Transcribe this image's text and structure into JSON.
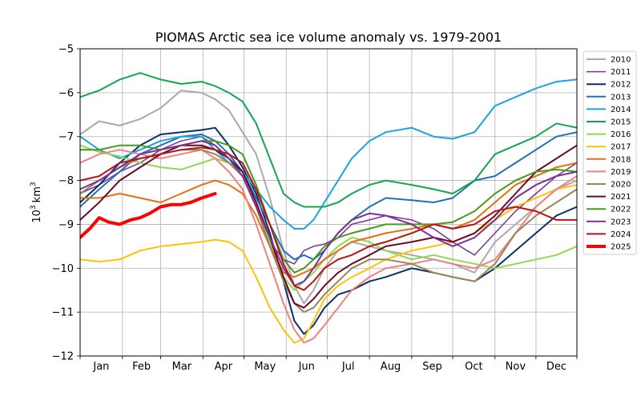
{
  "chart_data": {
    "type": "line",
    "title": "PIOMAS Arctic sea ice volume anomaly vs. 1979-2001",
    "ylabel_base": "10",
    "ylabel_exp": "3",
    "ylabel_unit": "km",
    "ylabel_unit_exp": "3",
    "xlabel": "",
    "ylim": [
      -12,
      -5
    ],
    "xlim": [
      1,
      365
    ],
    "yticks": [
      -12,
      -11,
      -10,
      -9,
      -8,
      -7,
      -6,
      -5
    ],
    "ytick_labels": [
      "−12",
      "−11",
      "−10",
      "−9",
      "−8",
      "−7",
      "−6",
      "−5"
    ],
    "month_boundaries": [
      1,
      32,
      60,
      91,
      121,
      152,
      182,
      213,
      244,
      274,
      305,
      335,
      365
    ],
    "months": [
      "Jan",
      "Feb",
      "Mar",
      "Apr",
      "May",
      "Jun",
      "Jul",
      "Aug",
      "Sep",
      "Oct",
      "Nov",
      "Dec"
    ],
    "grid": true,
    "legend_position": "right",
    "series": [
      {
        "name": "2010",
        "color": "#aaaaaa",
        "width": 2,
        "x": [
          1,
          15,
          30,
          45,
          60,
          75,
          90,
          100,
          110,
          120,
          130,
          140,
          150,
          158,
          165,
          172,
          180,
          190,
          200,
          213,
          225,
          244,
          260,
          274,
          290,
          305,
          320,
          335,
          350,
          365
        ],
        "y": [
          -6.95,
          -6.65,
          -6.75,
          -6.6,
          -6.35,
          -5.95,
          -6.0,
          -6.15,
          -6.4,
          -6.9,
          -7.4,
          -8.4,
          -9.6,
          -10.4,
          -10.8,
          -10.5,
          -10.0,
          -9.6,
          -9.4,
          -9.5,
          -9.6,
          -9.7,
          -9.8,
          -9.9,
          -10.1,
          -9.4,
          -9.0,
          -8.6,
          -8.2,
          -8.0
        ]
      },
      {
        "name": "2011",
        "color": "#7b3294",
        "width": 1.5,
        "x": [
          1,
          15,
          30,
          45,
          60,
          75,
          90,
          100,
          110,
          120,
          130,
          140,
          150,
          158,
          165,
          172,
          180,
          190,
          200,
          213,
          225,
          244,
          260,
          274,
          290,
          305,
          320,
          335,
          350,
          365
        ],
        "y": [
          -8.3,
          -8.1,
          -7.8,
          -7.6,
          -7.3,
          -7.1,
          -7.0,
          -7.2,
          -7.5,
          -7.9,
          -8.6,
          -9.4,
          -9.8,
          -9.9,
          -9.6,
          -9.5,
          -9.45,
          -9.3,
          -9.0,
          -8.9,
          -8.8,
          -8.9,
          -9.1,
          -9.4,
          -9.7,
          -9.2,
          -8.7,
          -8.3,
          -7.9,
          -7.6
        ]
      },
      {
        "name": "2012",
        "color": "#08306b",
        "width": 2,
        "x": [
          1,
          15,
          30,
          45,
          60,
          75,
          90,
          100,
          110,
          120,
          130,
          140,
          150,
          158,
          165,
          172,
          180,
          190,
          200,
          213,
          225,
          244,
          260,
          274,
          290,
          305,
          320,
          335,
          350,
          365
        ],
        "y": [
          -8.5,
          -8.1,
          -7.6,
          -7.2,
          -6.95,
          -6.9,
          -6.85,
          -6.8,
          -7.2,
          -7.7,
          -8.3,
          -9.2,
          -10.3,
          -11.2,
          -11.5,
          -11.3,
          -10.9,
          -10.6,
          -10.5,
          -10.3,
          -10.2,
          -10.0,
          -10.1,
          -10.2,
          -10.3,
          -10.0,
          -9.6,
          -9.2,
          -8.8,
          -8.6
        ]
      },
      {
        "name": "2013",
        "color": "#2171b5",
        "width": 2,
        "x": [
          1,
          15,
          30,
          45,
          60,
          75,
          90,
          100,
          110,
          120,
          130,
          140,
          150,
          158,
          165,
          172,
          180,
          190,
          200,
          213,
          225,
          244,
          260,
          274,
          290,
          305,
          320,
          335,
          350,
          365
        ],
        "y": [
          -8.6,
          -8.2,
          -7.8,
          -7.4,
          -7.2,
          -7.0,
          -6.95,
          -7.1,
          -7.4,
          -7.8,
          -8.4,
          -9.0,
          -9.6,
          -9.8,
          -9.7,
          -9.8,
          -9.6,
          -9.2,
          -8.9,
          -8.6,
          -8.4,
          -8.45,
          -8.5,
          -8.4,
          -8.0,
          -7.9,
          -7.6,
          -7.3,
          -7.0,
          -6.9
        ]
      },
      {
        "name": "2014",
        "color": "#1aa3e0",
        "width": 2,
        "x": [
          1,
          15,
          30,
          45,
          60,
          75,
          90,
          100,
          110,
          120,
          130,
          140,
          150,
          158,
          165,
          172,
          180,
          190,
          200,
          213,
          225,
          244,
          260,
          274,
          290,
          305,
          320,
          335,
          350,
          365
        ],
        "y": [
          -7.0,
          -7.3,
          -7.5,
          -7.3,
          -7.1,
          -7.0,
          -7.0,
          -7.3,
          -7.6,
          -7.8,
          -8.2,
          -8.6,
          -8.9,
          -9.1,
          -9.1,
          -8.9,
          -8.5,
          -8.0,
          -7.5,
          -7.1,
          -6.9,
          -6.8,
          -7.0,
          -7.05,
          -6.9,
          -6.3,
          -6.1,
          -5.9,
          -5.75,
          -5.7
        ]
      },
      {
        "name": "2015",
        "color": "#12a650",
        "width": 2,
        "x": [
          1,
          15,
          30,
          45,
          60,
          75,
          90,
          100,
          110,
          120,
          130,
          140,
          150,
          158,
          165,
          172,
          180,
          190,
          200,
          213,
          225,
          244,
          260,
          274,
          290,
          305,
          320,
          335,
          350,
          365
        ],
        "y": [
          -6.1,
          -5.95,
          -5.7,
          -5.55,
          -5.7,
          -5.8,
          -5.75,
          -5.85,
          -6.0,
          -6.2,
          -6.7,
          -7.5,
          -8.3,
          -8.5,
          -8.6,
          -8.6,
          -8.6,
          -8.5,
          -8.3,
          -8.1,
          -8.0,
          -8.1,
          -8.2,
          -8.3,
          -8.0,
          -7.4,
          -7.2,
          -7.0,
          -6.7,
          -6.8
        ]
      },
      {
        "name": "2016",
        "color": "#91d850",
        "width": 2,
        "x": [
          1,
          15,
          30,
          45,
          60,
          75,
          90,
          100,
          110,
          120,
          130,
          140,
          150,
          158,
          165,
          172,
          180,
          190,
          200,
          213,
          225,
          244,
          260,
          274,
          290,
          305,
          320,
          335,
          350,
          365
        ],
        "y": [
          -7.2,
          -7.35,
          -7.45,
          -7.6,
          -7.7,
          -7.75,
          -7.6,
          -7.5,
          -7.6,
          -7.9,
          -8.6,
          -9.4,
          -10.2,
          -10.5,
          -10.3,
          -10.1,
          -9.8,
          -9.5,
          -9.3,
          -9.4,
          -9.6,
          -9.8,
          -9.7,
          -9.8,
          -9.9,
          -10.0,
          -9.9,
          -9.8,
          -9.7,
          -9.5
        ]
      },
      {
        "name": "2017",
        "color": "#fbc30a",
        "width": 2,
        "x": [
          1,
          15,
          30,
          45,
          60,
          75,
          90,
          100,
          110,
          120,
          130,
          140,
          150,
          158,
          165,
          172,
          180,
          190,
          200,
          213,
          225,
          244,
          260,
          274,
          290,
          305,
          320,
          335,
          350,
          365
        ],
        "y": [
          -9.8,
          -9.85,
          -9.8,
          -9.6,
          -9.5,
          -9.45,
          -9.4,
          -9.35,
          -9.4,
          -9.6,
          -10.2,
          -10.9,
          -11.4,
          -11.7,
          -11.6,
          -11.2,
          -10.7,
          -10.4,
          -10.2,
          -10.0,
          -9.8,
          -9.6,
          -9.5,
          -9.4,
          -9.2,
          -8.9,
          -8.6,
          -8.4,
          -8.2,
          -8.1
        ]
      },
      {
        "name": "2018",
        "color": "#e6700f",
        "width": 2,
        "x": [
          1,
          15,
          30,
          45,
          60,
          75,
          90,
          100,
          110,
          120,
          130,
          140,
          150,
          158,
          165,
          172,
          180,
          190,
          200,
          213,
          225,
          244,
          260,
          274,
          290,
          305,
          320,
          335,
          350,
          365
        ],
        "y": [
          -8.4,
          -8.4,
          -8.3,
          -8.4,
          -8.5,
          -8.3,
          -8.1,
          -8.0,
          -8.1,
          -8.3,
          -8.8,
          -9.5,
          -10.1,
          -10.2,
          -10.1,
          -10.0,
          -9.8,
          -9.6,
          -9.4,
          -9.3,
          -9.2,
          -9.1,
          -9.0,
          -9.1,
          -8.9,
          -8.5,
          -8.1,
          -7.9,
          -7.7,
          -7.6
        ]
      },
      {
        "name": "2019",
        "color": "#f08080",
        "width": 2,
        "x": [
          1,
          15,
          30,
          45,
          60,
          75,
          90,
          100,
          110,
          120,
          130,
          140,
          150,
          158,
          165,
          172,
          180,
          190,
          200,
          213,
          225,
          244,
          260,
          274,
          290,
          305,
          320,
          335,
          350,
          365
        ],
        "y": [
          -7.6,
          -7.4,
          -7.3,
          -7.4,
          -7.5,
          -7.4,
          -7.3,
          -7.5,
          -7.8,
          -8.2,
          -9.0,
          -9.9,
          -10.8,
          -11.4,
          -11.7,
          -11.6,
          -11.3,
          -10.9,
          -10.5,
          -10.2,
          -10.0,
          -9.9,
          -9.8,
          -9.9,
          -10.0,
          -9.8,
          -9.2,
          -8.6,
          -8.2,
          -7.9
        ]
      },
      {
        "name": "2020",
        "color": "#9b8558",
        "width": 2,
        "x": [
          1,
          15,
          30,
          45,
          60,
          75,
          90,
          100,
          110,
          120,
          130,
          140,
          150,
          158,
          165,
          172,
          180,
          190,
          200,
          213,
          225,
          244,
          260,
          274,
          290,
          305,
          320,
          335,
          350,
          365
        ],
        "y": [
          -8.3,
          -8.0,
          -7.7,
          -7.5,
          -7.4,
          -7.3,
          -7.3,
          -7.4,
          -7.6,
          -7.9,
          -8.6,
          -9.5,
          -10.3,
          -10.8,
          -11.0,
          -10.9,
          -10.6,
          -10.3,
          -10.0,
          -9.8,
          -9.8,
          -9.9,
          -10.1,
          -10.2,
          -10.3,
          -9.9,
          -9.2,
          -8.8,
          -8.5,
          -8.2
        ]
      },
      {
        "name": "2021",
        "color": "#6a0a2a",
        "width": 2,
        "x": [
          1,
          15,
          30,
          45,
          60,
          75,
          90,
          100,
          110,
          120,
          130,
          140,
          150,
          158,
          165,
          172,
          180,
          190,
          200,
          213,
          225,
          244,
          260,
          274,
          290,
          305,
          320,
          335,
          350,
          365
        ],
        "y": [
          -8.9,
          -8.5,
          -8.0,
          -7.7,
          -7.4,
          -7.2,
          -7.2,
          -7.3,
          -7.5,
          -7.8,
          -8.5,
          -9.3,
          -10.2,
          -10.8,
          -10.9,
          -10.7,
          -10.4,
          -10.1,
          -9.9,
          -9.7,
          -9.5,
          -9.4,
          -9.3,
          -9.4,
          -9.2,
          -8.8,
          -8.3,
          -7.8,
          -7.5,
          -7.2
        ]
      },
      {
        "name": "2022",
        "color": "#4a9a1a",
        "width": 2,
        "x": [
          1,
          15,
          30,
          45,
          60,
          75,
          90,
          100,
          110,
          120,
          130,
          140,
          150,
          158,
          165,
          172,
          180,
          190,
          200,
          213,
          225,
          244,
          260,
          274,
          290,
          305,
          320,
          335,
          350,
          365
        ],
        "y": [
          -7.3,
          -7.3,
          -7.2,
          -7.2,
          -7.3,
          -7.2,
          -7.1,
          -7.1,
          -7.2,
          -7.4,
          -8.1,
          -9.0,
          -9.8,
          -10.1,
          -10.0,
          -9.8,
          -9.5,
          -9.3,
          -9.2,
          -9.1,
          -9.0,
          -9.0,
          -9.0,
          -8.95,
          -8.7,
          -8.3,
          -8.0,
          -7.8,
          -7.75,
          -7.8
        ]
      },
      {
        "name": "2023",
        "color": "#7b3294",
        "width": 2,
        "x": [
          1,
          15,
          30,
          45,
          60,
          75,
          90,
          100,
          110,
          120,
          130,
          140,
          150,
          158,
          165,
          172,
          180,
          190,
          200,
          213,
          225,
          244,
          260,
          274,
          290,
          305,
          320,
          335,
          350,
          365
        ],
        "y": [
          -8.2,
          -8.0,
          -7.7,
          -7.4,
          -7.3,
          -7.2,
          -7.1,
          -7.2,
          -7.5,
          -7.9,
          -8.6,
          -9.3,
          -10.0,
          -10.4,
          -10.3,
          -10.0,
          -9.6,
          -9.2,
          -8.9,
          -8.75,
          -8.8,
          -9.0,
          -9.3,
          -9.5,
          -9.3,
          -8.9,
          -8.4,
          -8.1,
          -7.9,
          -7.8
        ]
      },
      {
        "name": "2024",
        "color": "#b81414",
        "width": 2,
        "x": [
          1,
          15,
          30,
          45,
          60,
          75,
          90,
          100,
          110,
          120,
          130,
          140,
          150,
          158,
          165,
          172,
          180,
          190,
          200,
          213,
          225,
          244,
          260,
          274,
          290,
          305,
          320,
          335,
          350,
          365
        ],
        "y": [
          -8.0,
          -7.9,
          -7.6,
          -7.5,
          -7.4,
          -7.3,
          -7.25,
          -7.3,
          -7.4,
          -7.6,
          -8.2,
          -9.0,
          -9.9,
          -10.4,
          -10.5,
          -10.3,
          -10.0,
          -9.8,
          -9.7,
          -9.5,
          -9.4,
          -9.2,
          -9.0,
          -9.1,
          -9.0,
          -8.7,
          -8.6,
          -8.7,
          -8.9,
          -8.9
        ]
      },
      {
        "name": "2025",
        "color": "#ff0000",
        "width": 4,
        "x": [
          1,
          8,
          15,
          22,
          30,
          38,
          45,
          52,
          60,
          68,
          75,
          82,
          90,
          95,
          100
        ],
        "y": [
          -9.3,
          -9.1,
          -8.85,
          -8.95,
          -9.0,
          -8.9,
          -8.85,
          -8.75,
          -8.6,
          -8.55,
          -8.55,
          -8.5,
          -8.4,
          -8.35,
          -8.3
        ]
      }
    ]
  }
}
